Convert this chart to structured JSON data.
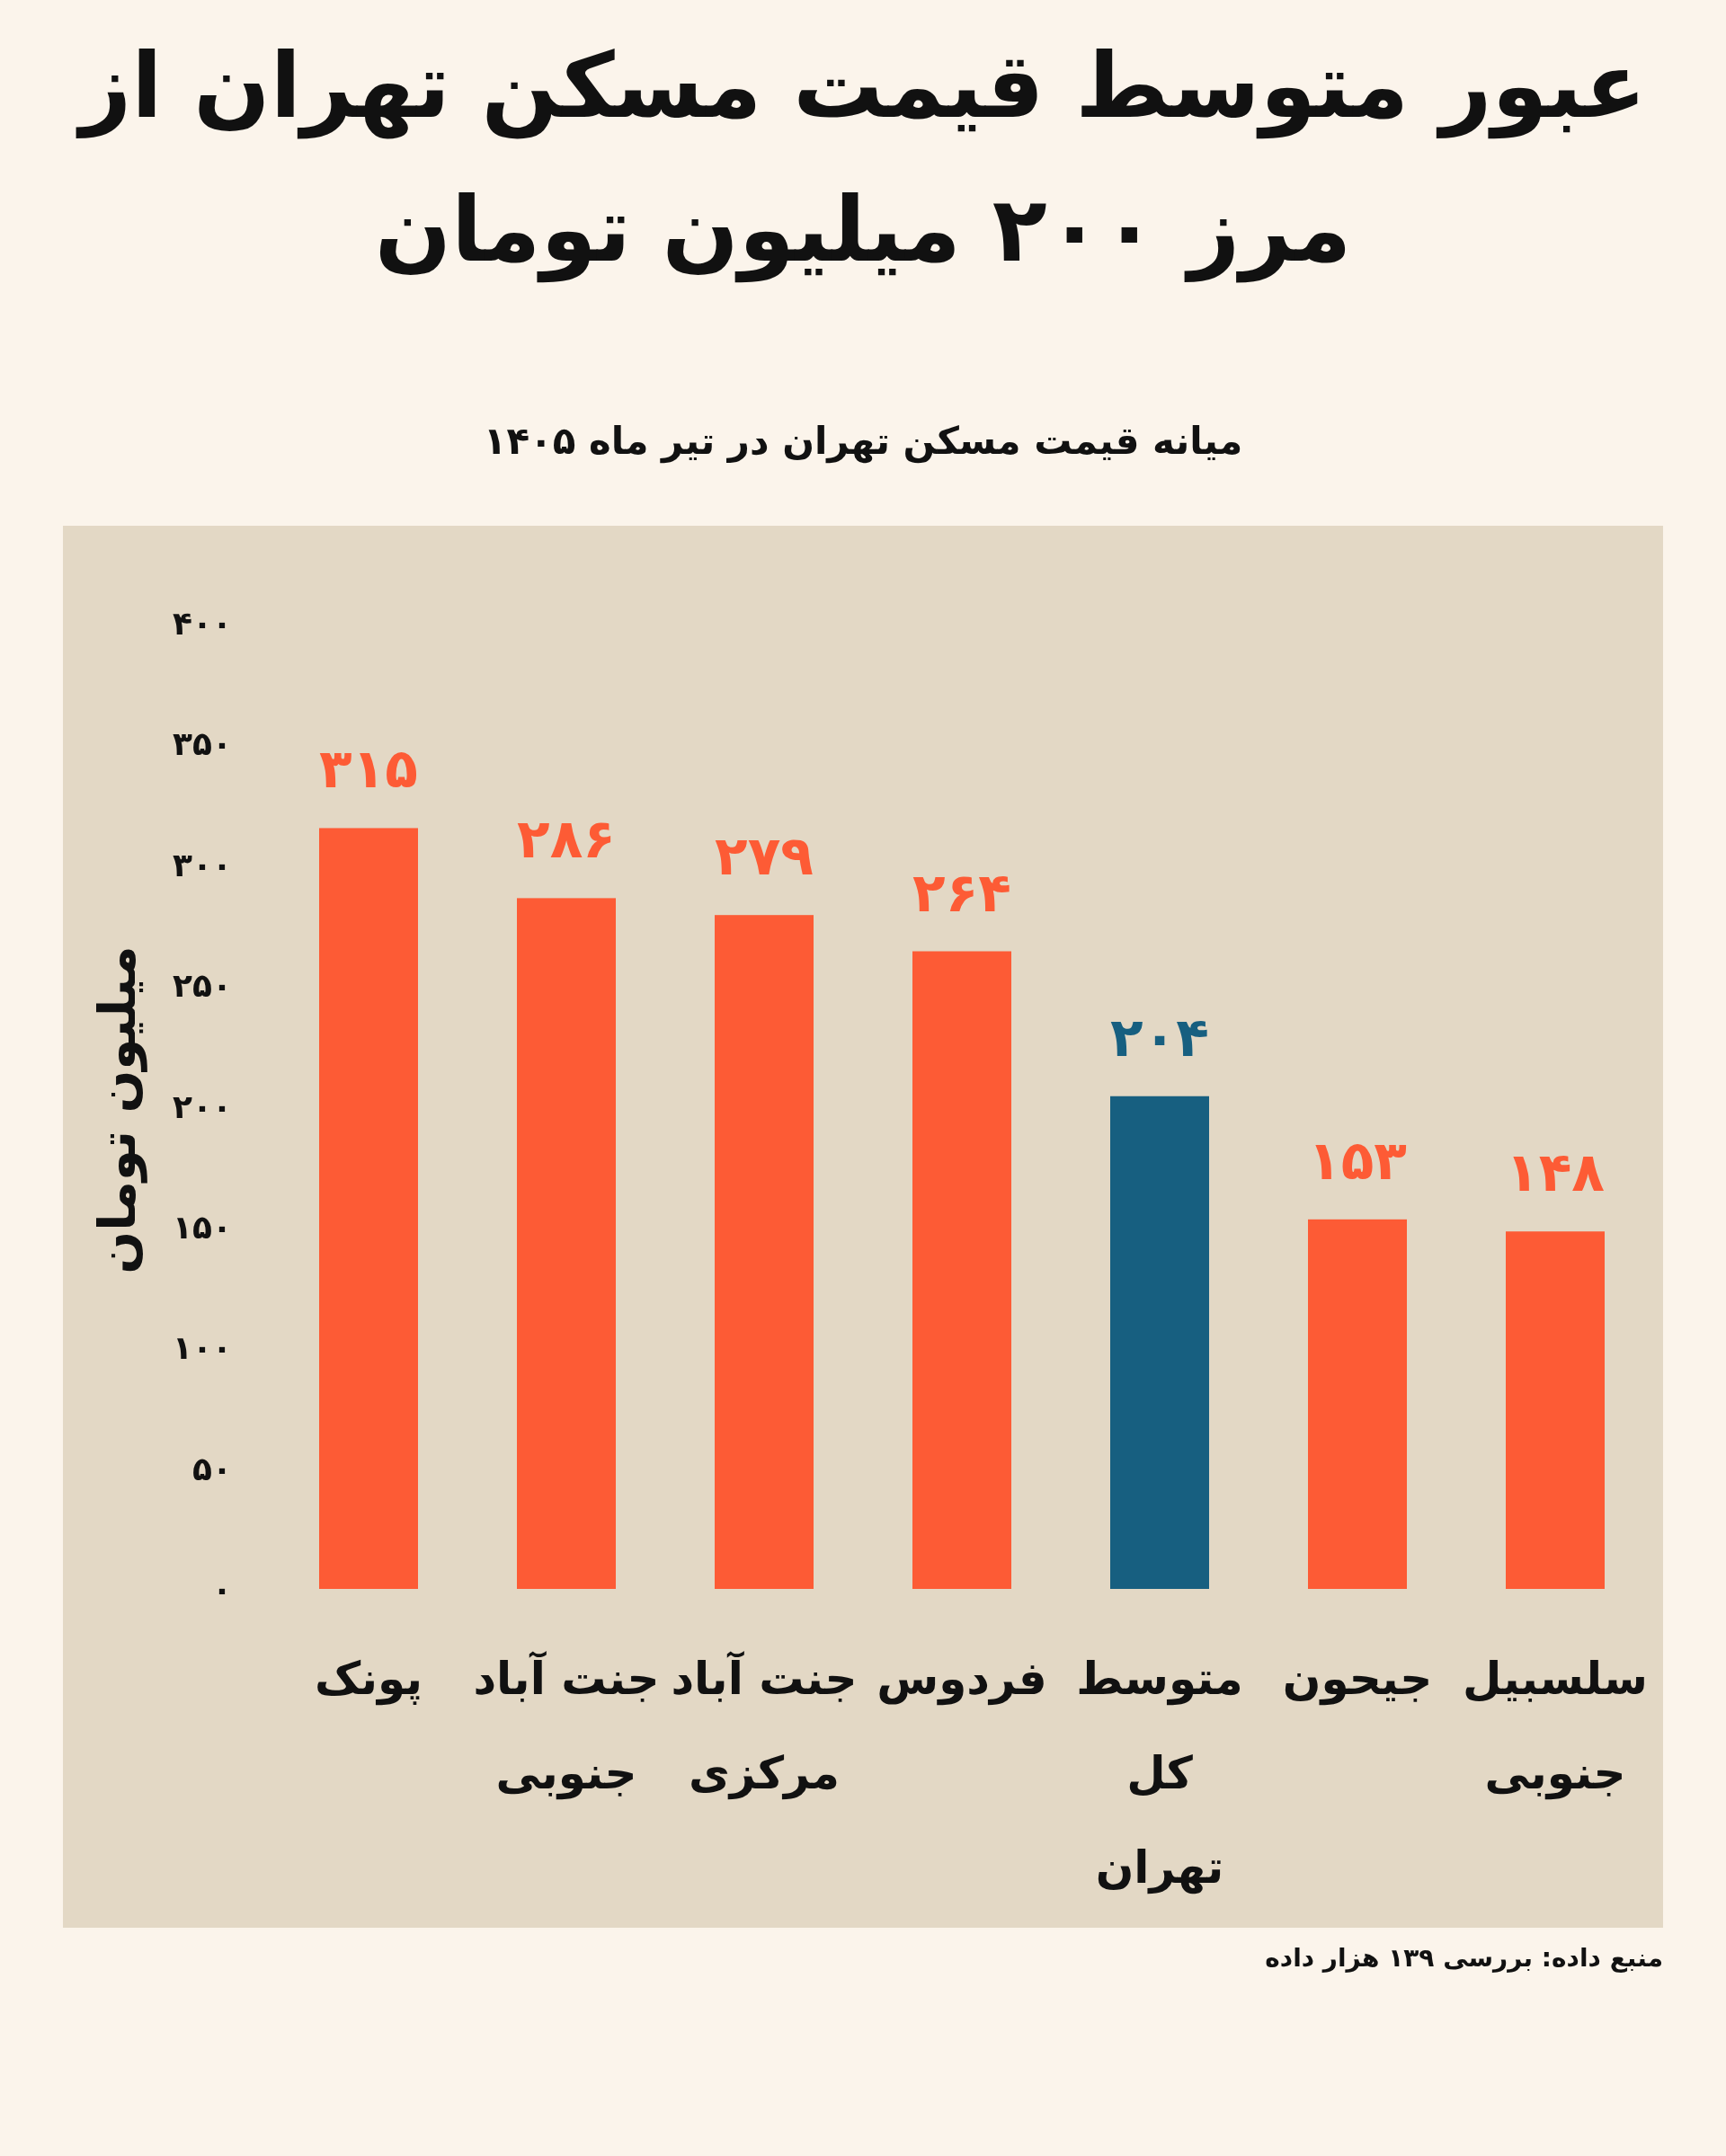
{
  "chart_data": {
    "type": "bar",
    "title": "عبور متوسط قیمت مسکن تهران از مرز ۲۰۰ میلیون تومان",
    "subtitle": "میانه قیمت مسکن تهران در تیر ماه ۱۴۰۵",
    "ylabel": "میلیون تومان",
    "categories": [
      "پونک",
      "جنت آباد جنوبی",
      "جنت آباد مرکزی",
      "فردوس",
      "متوسط کل تهران",
      "جیحون",
      "سلسبیل جنوبی"
    ],
    "values": [
      315,
      286,
      279,
      264,
      204,
      153,
      148
    ],
    "colors": [
      "#fd5b35",
      "#fd5b35",
      "#fd5b35",
      "#fd5b35",
      "#175f80",
      "#fd5b35",
      "#fd5b35"
    ],
    "value_labels": [
      "۳۱۵",
      "۲۸۶",
      "۲۷۹",
      "۲۶۴",
      "۲۰۴",
      "۱۵۳",
      "۱۴۸"
    ],
    "ylim": [
      0,
      400
    ],
    "yticks": [
      {
        "value": 0,
        "label": "۰"
      },
      {
        "value": 50,
        "label": "۵۰"
      },
      {
        "value": 100,
        "label": "۱۰۰"
      },
      {
        "value": 150,
        "label": "۱۵۰"
      },
      {
        "value": 200,
        "label": "۲۰۰"
      },
      {
        "value": 250,
        "label": "۲۵۰"
      },
      {
        "value": 300,
        "label": "۳۰۰"
      },
      {
        "value": 350,
        "label": "۳۵۰"
      },
      {
        "value": 400,
        "label": "۴۰۰"
      }
    ],
    "grid": false,
    "annotations": [
      "منبع داده: بررسی ۱۳۹ هزار داده"
    ]
  }
}
